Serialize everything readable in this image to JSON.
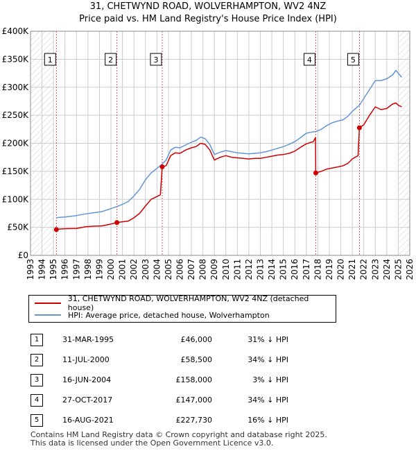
{
  "header": {
    "title": "31, CHETWYND ROAD, WOLVERHAMPTON, WV2 4NZ",
    "subtitle": "Price paid vs. HM Land Registry's House Price Index (HPI)"
  },
  "chart_data": {
    "type": "line",
    "title": "31, CHETWYND ROAD, WOLVERHAMPTON, WV2 4NZ",
    "subtitle": "Price paid vs. HM Land Registry's House Price Index (HPI)",
    "xlim": [
      1993,
      2026
    ],
    "ylim": [
      0,
      400000
    ],
    "x_ticks": [
      1993,
      1994,
      1995,
      1996,
      1997,
      1998,
      1999,
      2000,
      2001,
      2002,
      2003,
      2004,
      2005,
      2006,
      2007,
      2008,
      2009,
      2010,
      2011,
      2012,
      2013,
      2014,
      2015,
      2016,
      2017,
      2018,
      2019,
      2020,
      2021,
      2022,
      2023,
      2024,
      2025,
      2026
    ],
    "y_ticks": [
      {
        "value": 0,
        "label": "£0"
      },
      {
        "value": 50000,
        "label": "£50K"
      },
      {
        "value": 100000,
        "label": "£100K"
      },
      {
        "value": 150000,
        "label": "£150K"
      },
      {
        "value": 200000,
        "label": "£200K"
      },
      {
        "value": 250000,
        "label": "£250K"
      },
      {
        "value": 300000,
        "label": "£300K"
      },
      {
        "value": 350000,
        "label": "£350K"
      },
      {
        "value": 400000,
        "label": "£400K"
      }
    ],
    "grid": true,
    "series": [
      {
        "name": "31, CHETWYND ROAD, WOLVERHAMPTON, WV2 4NZ (detached house)",
        "color": "#cc0000",
        "points": [
          [
            1995.25,
            46000
          ],
          [
            1995.6,
            47000
          ],
          [
            1996,
            47500
          ],
          [
            1997,
            48000
          ],
          [
            1997.8,
            51000
          ],
          [
            1998.5,
            52000
          ],
          [
            1999.2,
            52500
          ],
          [
            1999.8,
            55000
          ],
          [
            2000.52,
            58500
          ],
          [
            2001,
            60000
          ],
          [
            2001.5,
            61000
          ],
          [
            2002,
            67000
          ],
          [
            2002.5,
            75000
          ],
          [
            2003,
            88000
          ],
          [
            2003.5,
            100000
          ],
          [
            2004.3,
            108000
          ],
          [
            2004.46,
            158000
          ],
          [
            2004.8,
            160000
          ],
          [
            2005.2,
            178000
          ],
          [
            2005.6,
            183000
          ],
          [
            2006,
            182000
          ],
          [
            2006.5,
            188000
          ],
          [
            2007,
            192000
          ],
          [
            2007.4,
            194000
          ],
          [
            2007.8,
            200000
          ],
          [
            2008.2,
            198000
          ],
          [
            2008.6,
            188000
          ],
          [
            2009,
            170000
          ],
          [
            2009.5,
            175000
          ],
          [
            2010,
            178000
          ],
          [
            2010.5,
            175000
          ],
          [
            2011,
            174000
          ],
          [
            2011.5,
            173000
          ],
          [
            2012,
            172000
          ],
          [
            2012.5,
            173000
          ],
          [
            2013,
            173000
          ],
          [
            2013.5,
            175000
          ],
          [
            2014,
            177000
          ],
          [
            2014.5,
            179000
          ],
          [
            2015,
            180000
          ],
          [
            2015.5,
            182000
          ],
          [
            2016,
            186000
          ],
          [
            2016.5,
            193000
          ],
          [
            2017,
            199000
          ],
          [
            2017.6,
            203000
          ],
          [
            2017.8,
            210000
          ],
          [
            2017.82,
            147000
          ],
          [
            2018.3,
            150000
          ],
          [
            2018.8,
            154000
          ],
          [
            2019.3,
            156000
          ],
          [
            2019.8,
            158000
          ],
          [
            2020.2,
            160000
          ],
          [
            2020.6,
            164000
          ],
          [
            2021,
            172000
          ],
          [
            2021.5,
            178000
          ],
          [
            2021.62,
            227730
          ],
          [
            2022,
            233000
          ],
          [
            2022.5,
            250000
          ],
          [
            2023,
            265000
          ],
          [
            2023.5,
            260000
          ],
          [
            2024,
            262000
          ],
          [
            2024.5,
            270000
          ],
          [
            2024.8,
            272000
          ],
          [
            2025,
            268000
          ],
          [
            2025.3,
            265000
          ]
        ]
      },
      {
        "name": "HPI: Average price, detached house, Wolverhampton",
        "color": "#6495d6",
        "points": [
          [
            1995.25,
            67000
          ],
          [
            1995.6,
            68000
          ],
          [
            1996,
            68500
          ],
          [
            1997,
            71000
          ],
          [
            1997.8,
            74000
          ],
          [
            1998.5,
            76000
          ],
          [
            1999.2,
            78000
          ],
          [
            1999.8,
            82000
          ],
          [
            2000.52,
            87000
          ],
          [
            2001,
            91000
          ],
          [
            2001.5,
            96000
          ],
          [
            2002,
            106000
          ],
          [
            2002.5,
            118000
          ],
          [
            2003,
            135000
          ],
          [
            2003.5,
            147000
          ],
          [
            2004.46,
            163000
          ],
          [
            2004.8,
            170000
          ],
          [
            2005.2,
            188000
          ],
          [
            2005.6,
            193000
          ],
          [
            2006,
            192000
          ],
          [
            2006.5,
            197000
          ],
          [
            2007,
            202000
          ],
          [
            2007.4,
            205000
          ],
          [
            2007.8,
            211000
          ],
          [
            2008.2,
            208000
          ],
          [
            2008.6,
            198000
          ],
          [
            2009,
            180000
          ],
          [
            2009.5,
            184000
          ],
          [
            2010,
            187000
          ],
          [
            2010.5,
            185000
          ],
          [
            2011,
            183000
          ],
          [
            2011.5,
            182000
          ],
          [
            2012,
            181000
          ],
          [
            2012.5,
            182000
          ],
          [
            2013,
            183000
          ],
          [
            2013.5,
            185000
          ],
          [
            2014,
            188000
          ],
          [
            2014.5,
            191000
          ],
          [
            2015,
            194000
          ],
          [
            2015.5,
            198000
          ],
          [
            2016,
            203000
          ],
          [
            2016.5,
            210000
          ],
          [
            2017,
            218000
          ],
          [
            2017.5,
            220000
          ],
          [
            2017.82,
            221000
          ],
          [
            2018.3,
            225000
          ],
          [
            2018.8,
            232000
          ],
          [
            2019.3,
            237000
          ],
          [
            2019.8,
            240000
          ],
          [
            2020.2,
            242000
          ],
          [
            2020.6,
            248000
          ],
          [
            2021,
            257000
          ],
          [
            2021.62,
            268000
          ],
          [
            2022,
            280000
          ],
          [
            2022.5,
            296000
          ],
          [
            2023,
            312000
          ],
          [
            2023.5,
            312000
          ],
          [
            2024,
            315000
          ],
          [
            2024.5,
            322000
          ],
          [
            2024.8,
            330000
          ],
          [
            2025,
            325000
          ],
          [
            2025.3,
            318000
          ]
        ]
      }
    ],
    "sales": [
      {
        "label": "1",
        "x": 1995.25,
        "price": 46000
      },
      {
        "label": "2",
        "x": 2000.52,
        "price": 58500
      },
      {
        "label": "3",
        "x": 2004.46,
        "price": 158000
      },
      {
        "label": "4",
        "x": 2017.82,
        "price": 147000
      },
      {
        "label": "5",
        "x": 2021.62,
        "price": 227730
      }
    ],
    "hatched_ranges": [
      [
        1993,
        1995.0
      ],
      [
        2025.0,
        2026
      ]
    ]
  },
  "legend": {
    "items": [
      {
        "label": "31, CHETWYND ROAD, WOLVERHAMPTON, WV2 4NZ (detached house)",
        "color": "#cc0000"
      },
      {
        "label": "HPI: Average price, detached house, Wolverhampton",
        "color": "#6495d6"
      }
    ]
  },
  "sales_table": [
    {
      "num": "1",
      "date": "31-MAR-1995",
      "price": "£46,000",
      "hpi": "31% ↓ HPI"
    },
    {
      "num": "2",
      "date": "11-JUL-2000",
      "price": "£58,500",
      "hpi": "34% ↓ HPI"
    },
    {
      "num": "3",
      "date": "16-JUN-2004",
      "price": "£158,000",
      "hpi": "3% ↓ HPI"
    },
    {
      "num": "4",
      "date": "27-OCT-2017",
      "price": "£147,000",
      "hpi": "34% ↓ HPI"
    },
    {
      "num": "5",
      "date": "16-AUG-2021",
      "price": "£227,730",
      "hpi": "16% ↓ HPI"
    }
  ],
  "footer": {
    "line1": "Contains HM Land Registry data © Crown copyright and database right 2025.",
    "line2": "This data is licensed under the Open Government Licence v3.0."
  }
}
